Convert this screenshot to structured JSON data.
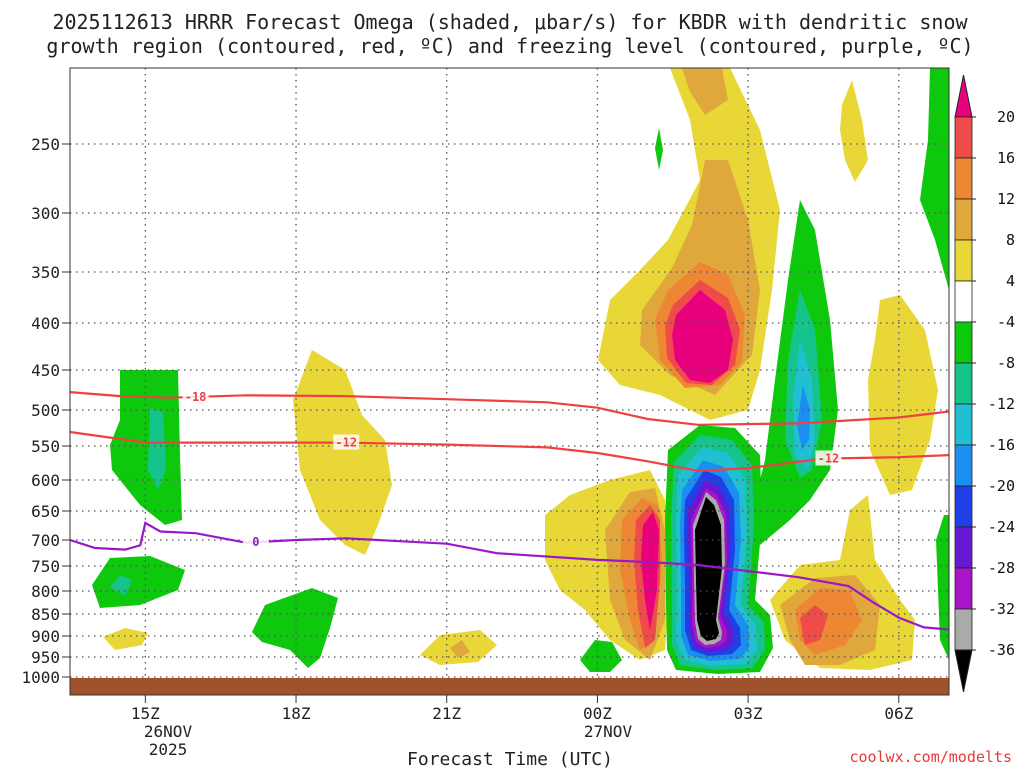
{
  "chart_data": {
    "type": "time-height contour",
    "title_line1": "2025112613 HRRR Forecast Omega (shaded, μbar/s) for KBDR with dendritic snow",
    "title_line2": "growth region (contoured, red, ºC) and freezing level (contoured, purple, ºC)",
    "xlabel": "Forecast Time (UTC)",
    "credit": "coolwx.com/modelts",
    "date_label": "26NOV",
    "year_label": "2025",
    "date2_label": "27NOV",
    "x_ticks": [
      {
        "hour": 15,
        "label": "15Z"
      },
      {
        "hour": 18,
        "label": "18Z"
      },
      {
        "hour": 21,
        "label": "21Z"
      },
      {
        "hour": 24,
        "label": "00Z"
      },
      {
        "hour": 27,
        "label": "03Z"
      },
      {
        "hour": 30,
        "label": "06Z"
      }
    ],
    "x_range_hours": [
      13.5,
      31.0
    ],
    "y_ticks": [
      250,
      300,
      350,
      400,
      450,
      500,
      550,
      600,
      650,
      700,
      750,
      800,
      850,
      900,
      950,
      1000
    ],
    "y_range_hPa": [
      200,
      1030
    ],
    "ground_hPa": 1020,
    "colorbar": {
      "labels": [
        "20",
        "16",
        "12",
        "8",
        "4",
        "-4",
        "-8",
        "-12",
        "-16",
        "-20",
        "-24",
        "-28",
        "-32",
        "-36"
      ],
      "colors": [
        "#e8007c",
        "#ef4b4b",
        "#ee8733",
        "#e0a73c",
        "#e9d737",
        "#ffffff",
        "#0ec80e",
        "#15c48a",
        "#20c0d2",
        "#1b8ff0",
        "#1f3fe8",
        "#6618d2",
        "#aa14c8",
        "#aaaaaa",
        "#000000"
      ]
    },
    "contours": [
      {
        "label": "-18",
        "color": "#ef4141",
        "points": [
          [
            13.5,
            477
          ],
          [
            14.5,
            482
          ],
          [
            15.5,
            484
          ],
          [
            17,
            481
          ],
          [
            19,
            482
          ],
          [
            21,
            486
          ],
          [
            23,
            490
          ],
          [
            24,
            497
          ],
          [
            25,
            512
          ],
          [
            26,
            520
          ],
          [
            28,
            518
          ],
          [
            30,
            510
          ],
          [
            31,
            502
          ]
        ]
      },
      {
        "label": "-12",
        "color": "#ef4141",
        "points": [
          [
            13.5,
            530
          ],
          [
            15,
            545
          ],
          [
            17,
            545
          ],
          [
            19,
            545
          ],
          [
            21,
            548
          ],
          [
            23,
            552
          ],
          [
            24,
            560
          ],
          [
            25,
            572
          ],
          [
            26,
            586
          ],
          [
            27,
            582
          ],
          [
            28.5,
            568
          ],
          [
            30,
            566
          ],
          [
            31,
            563
          ]
        ]
      },
      {
        "label": "0",
        "color": "#9a18c8",
        "points": [
          [
            13.5,
            700
          ],
          [
            14,
            715
          ],
          [
            14.6,
            718
          ],
          [
            14.9,
            710
          ],
          [
            15,
            670
          ],
          [
            15.3,
            685
          ],
          [
            16,
            688
          ],
          [
            17,
            705
          ],
          [
            18,
            700
          ],
          [
            19,
            697
          ],
          [
            21,
            707
          ],
          [
            22,
            725
          ],
          [
            24,
            738
          ],
          [
            25,
            742
          ],
          [
            26,
            748
          ],
          [
            27,
            760
          ],
          [
            28,
            772
          ],
          [
            29,
            790
          ],
          [
            29.5,
            825
          ],
          [
            30,
            858
          ],
          [
            30.5,
            880
          ],
          [
            31,
            885
          ]
        ]
      }
    ],
    "omega_regions": [
      {
        "name": "ascent-core-black",
        "min_value": -36,
        "at_hour": 26.1,
        "at_hPa": 760
      },
      {
        "name": "descent-max-pink",
        "max_value": 20,
        "at_hour": 25.4,
        "at_hPa": 400
      }
    ]
  }
}
